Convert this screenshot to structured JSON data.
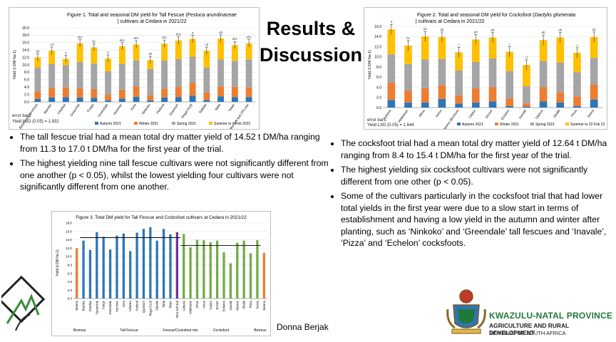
{
  "slide": {
    "title_line1": "Results &",
    "title_line2": "Discussion",
    "author": "Donna Berjak"
  },
  "figure1": {
    "title_a": "Figure 1. Total and seasonal DM yield for Tall Fescue (",
    "title_italic": "Festuca arundinaceae",
    "title_b": ") cultivars at Cedara in 2021/22",
    "error_note": "error bars:",
    "lsd": "Yield LSD (0.05) = 1.932",
    "ylabel": "Yield (t DM ha-1)"
  },
  "figure2": {
    "title_a": "Figure 2. Total and seasonal DM yield for Cocksfoot (",
    "title_italic": "Dactylis glomerata",
    "title_b": ") cultivars at Cedara in 2021/22",
    "error_note": "error bars:",
    "lsd": "Yield LSD (0.05) = 1.644",
    "ylabel": "Yield (t DM ha-1)"
  },
  "figure3": {
    "title": "Figure 3. Total DM yield for Tall Fescue and Cocksfoot cultivars at Cedara in 2021/22",
    "ylabel": "Yield (t DM ha-1)",
    "groups": [
      "Bromus",
      "Tall Fescue",
      "Fescue/Cocksfoot mix",
      "Cocksfoot"
    ]
  },
  "colors": {
    "autumn": "#2e75b6",
    "winter": "#ed7d31",
    "spring": "#a5a5a5",
    "summer": "#ffc000",
    "fig3_bromus": "#ed7d31",
    "fig3_fescue": "#2e75b6",
    "fig3_mix": "#7030a0",
    "fig3_cocksfoot": "#70ad47",
    "kzn_green": "#1f7a3a"
  },
  "left_bullets": [
    "The tall fescue trial had a mean total dry matter yield of 14.52 t DM/ha ranging from 11.3  to 17.0 t DM/ha for the first year of the trial.",
    "The highest yielding nine tall fescue cultivars were not significantly different from one another (p < 0.05), whilst the lowest yielding four cultivars were not significantly different from one another."
  ],
  "right_bullets": [
    "The cocksfoot trial had a  mean total dry matter yield of 12.64  t DM/ha ranging from 8.4 to 15.4  t DM/ha for the first year of the trial.",
    "The highest yielding six cocksfoot cultivars were not significantly different from one other (p < 0.05).",
    "Some of the cultivars particularly in the cocksfoot trial that had lower total yields in the first year were due to a slow start in terms of establishment and having a low yield in the autumn and winter after planting, such as ‘Ninkoko’ and ‘Greendale’ tall fescues and ‘Inavale’, ‘Pizza’ and ‘Echelon’ cocksfoots."
  ],
  "logo": {
    "line1": "KWAZULU-NATAL PROVINCE",
    "line2": "AGRICULTURE AND RURAL DEVELOPMENT",
    "line3": "REPUBLIC OF SOUTH AFRICA",
    "left_logo": "grassland-logo-icon",
    "right_logo": "kzn-coat-of-arms-icon"
  },
  "chart_data": [
    {
      "type": "bar",
      "stacked": true,
      "categories": [
        "Barenbrug (Bromus)",
        "Barolex",
        "Charlize",
        "Durarchie",
        "Fuego",
        "Greendale",
        "Hummer",
        "Kora",
        "Ninkoko",
        "Padoral",
        "Quantum",
        "Regal 5128",
        "Saltalia",
        "Tabla",
        "Tower",
        "Ultra soft leaf (TF) mix"
      ],
      "series": [
        {
          "name": "Autumn 2021",
          "values": [
            0.8,
            1.2,
            1.3,
            1.2,
            1.1,
            0.4,
            0.9,
            1.4,
            0.4,
            1.2,
            1.3,
            1.7,
            0.5,
            1.5,
            1.3,
            1.3
          ]
        },
        {
          "name": "Winter 2021",
          "values": [
            2.0,
            2.6,
            2.6,
            2.5,
            2.4,
            1.6,
            2.4,
            2.8,
            1.4,
            2.4,
            2.7,
            3.4,
            2.0,
            2.7,
            2.8,
            2.6
          ]
        },
        {
          "name": "Spring 2021",
          "values": [
            6.5,
            6.4,
            6.0,
            7.1,
            6.8,
            6.3,
            6.9,
            7.0,
            7.1,
            7.6,
            7.6,
            7.1,
            6.8,
            7.3,
            7.0,
            7.6
          ]
        },
        {
          "name": "Summer to 9 Feb 2022",
          "values": [
            2.7,
            3.6,
            1.7,
            5.0,
            4.4,
            3.4,
            4.8,
            4.3,
            2.4,
            4.5,
            5.0,
            4.8,
            4.5,
            5.6,
            4.2,
            4.3
          ]
        }
      ],
      "letters": [
        "ab",
        "cd",
        "e",
        "abc",
        "bc",
        "e",
        "abc",
        "abc",
        "de",
        "abc",
        "abc",
        "a",
        "cd",
        "ab",
        "abc",
        "abc"
      ],
      "ylim": [
        0,
        20
      ],
      "yticks": [
        0.0,
        2.0,
        4.0,
        6.0,
        8.0,
        10.0,
        12.0,
        14.0,
        16.0,
        18.0,
        20.0
      ],
      "legend_position": "bottom"
    },
    {
      "type": "bar",
      "stacked": true,
      "categories": [
        "Adrenis",
        "Aldebaran",
        "Athos",
        "Aurus",
        "Bareno (Bromus)",
        "Captur",
        "Drover",
        "Echelon",
        "Inavale",
        "Oberon",
        "Okalla",
        "Pizza",
        "Savvy"
      ],
      "series": [
        {
          "name": "Autumn 2021",
          "values": [
            1.5,
            1.0,
            1.0,
            1.7,
            0.8,
            1.0,
            1.2,
            0.3,
            0.2,
            1.2,
            1.0,
            0.3,
            1.6
          ]
        },
        {
          "name": "Winter 2021",
          "values": [
            3.4,
            2.3,
            2.8,
            2.7,
            1.6,
            2.8,
            2.8,
            1.5,
            0.6,
            2.8,
            2.0,
            1.9,
            2.9
          ]
        },
        {
          "name": "Spring 2021",
          "values": [
            5.6,
            5.3,
            5.7,
            5.2,
            4.9,
            5.2,
            5.7,
            5.4,
            3.4,
            5.2,
            5.9,
            4.8,
            5.3
          ]
        },
        {
          "name": "Summer to 22 Feb 22",
          "values": [
            4.9,
            3.6,
            4.5,
            4.3,
            3.6,
            4.4,
            4.1,
            3.8,
            4.2,
            4.1,
            4.9,
            3.8,
            4.1
          ]
        }
      ],
      "letters": [
        "a",
        "bc",
        "ab",
        "ab",
        "c",
        "ab",
        "ab",
        "c",
        "d",
        "ab",
        "ab",
        "c",
        "ab"
      ],
      "ylim": [
        0,
        16
      ],
      "yticks": [
        0.0,
        2.0,
        4.0,
        6.0,
        8.0,
        10.0,
        12.0,
        14.0,
        16.0
      ],
      "legend_position": "bottom"
    },
    {
      "type": "bar",
      "categories": [
        "Bareno",
        "Barolex",
        "Charlize",
        "Duranchie",
        "Fuego",
        "Greendale",
        "Hummer",
        "Kora",
        "Ninkoko",
        "Padoral",
        "Quantum",
        "Regal 5128",
        "Saltalia",
        "Tabla",
        "Tower",
        "Ultra soft leaf",
        "Adrenis",
        "Aldebaran",
        "Athos",
        "Aurus",
        "Captur",
        "Drover",
        "Echelon",
        "Inavale",
        "Oberon",
        "Okalla",
        "Pizza",
        "Savvy",
        "Bareno"
      ],
      "values": [
        12.0,
        13.8,
        11.6,
        15.8,
        14.7,
        11.7,
        15.0,
        15.5,
        11.3,
        15.7,
        16.6,
        17.0,
        13.8,
        16.6,
        15.3,
        15.8,
        15.4,
        12.2,
        14.0,
        13.9,
        13.4,
        13.8,
        11.0,
        8.4,
        13.3,
        13.8,
        10.8,
        13.9,
        10.9
      ],
      "group_of_bar": [
        "Bromus",
        "Tall Fescue",
        "Tall Fescue",
        "Tall Fescue",
        "Tall Fescue",
        "Tall Fescue",
        "Tall Fescue",
        "Tall Fescue",
        "Tall Fescue",
        "Tall Fescue",
        "Tall Fescue",
        "Tall Fescue",
        "Tall Fescue",
        "Tall Fescue",
        "Tall Fescue",
        "Fescue/Cocksfoot mix",
        "Cocksfoot",
        "Cocksfoot",
        "Cocksfoot",
        "Cocksfoot",
        "Cocksfoot",
        "Cocksfoot",
        "Cocksfoot",
        "Cocksfoot",
        "Cocksfoot",
        "Cocksfoot",
        "Cocksfoot",
        "Cocksfoot",
        "Bromus"
      ],
      "reference_lines": [
        14.52,
        12.64
      ],
      "ylim": [
        0,
        18
      ],
      "yticks": [
        0.0,
        2.0,
        4.0,
        6.0,
        8.0,
        10.0,
        12.0,
        14.0,
        16.0,
        18.0
      ]
    }
  ]
}
